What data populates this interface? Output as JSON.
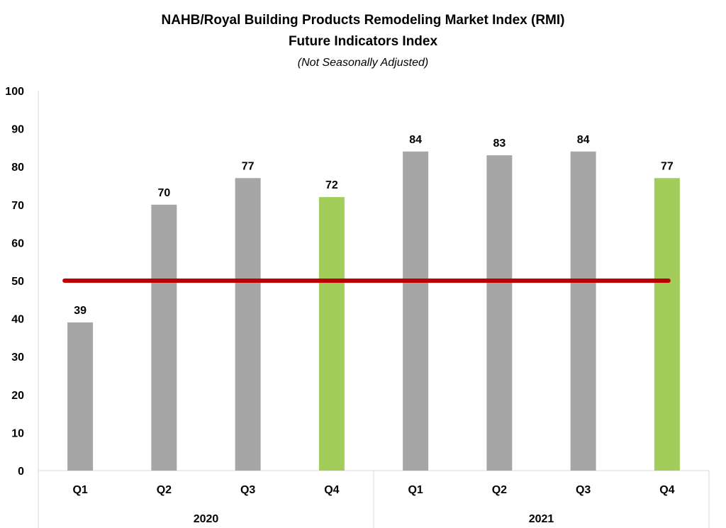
{
  "chart_data": {
    "type": "bar",
    "title": "NAHB/Royal Building Products Remodeling Market Index (RMI)",
    "subtitle": "Future Indicators Index",
    "note": "(Not Seasonally Adjusted)",
    "categories": [
      "Q1",
      "Q2",
      "Q3",
      "Q4",
      "Q1",
      "Q2",
      "Q3",
      "Q4"
    ],
    "groups": [
      {
        "label": "2020",
        "span": [
          0,
          3
        ]
      },
      {
        "label": "2021",
        "span": [
          4,
          7
        ]
      }
    ],
    "values": [
      39,
      70,
      77,
      72,
      84,
      83,
      84,
      77
    ],
    "highlight": [
      false,
      false,
      false,
      true,
      false,
      false,
      false,
      true
    ],
    "ylim": [
      0,
      100
    ],
    "yticks": [
      0,
      10,
      20,
      30,
      40,
      50,
      60,
      70,
      80,
      90,
      100
    ],
    "reference_line": 50,
    "grid": false,
    "colors": {
      "bar": "#a6a6a6",
      "highlight_bar": "#a2cd5a",
      "reference_line": "#c00000",
      "axis": "#d9d9d9"
    }
  }
}
